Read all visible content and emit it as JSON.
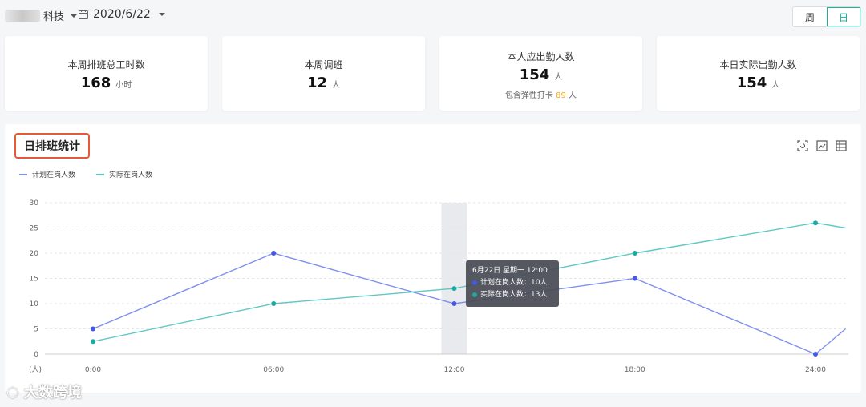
{
  "header": {
    "company_suffix": "科技",
    "date": "2020/6/22",
    "view_toggle": [
      "周",
      "日"
    ],
    "active_view": "日"
  },
  "cards": [
    {
      "label": "本周排班总工时数",
      "value": "168",
      "unit": "小时"
    },
    {
      "label": "本周调班",
      "value": "12",
      "unit": "人"
    },
    {
      "label": "本人应出勤人数",
      "value": "154",
      "unit": "人",
      "note_prefix": "包含弹性打卡",
      "note_value": "89",
      "note_unit": "人"
    },
    {
      "label": "本日实际出勤人数",
      "value": "154",
      "unit": "人"
    }
  ],
  "chart_panel": {
    "title": "日排班统计",
    "tools": [
      "restore-icon",
      "save-image-icon",
      "data-view-icon"
    ]
  },
  "chart_data": {
    "type": "line",
    "x": [
      "0:00",
      "06:00",
      "12:00",
      "18:00",
      "24:00"
    ],
    "x_hours": [
      0,
      6,
      12,
      18,
      24
    ],
    "ylim": [
      0,
      30
    ],
    "yticks": [
      0,
      5,
      10,
      15,
      20,
      25,
      30
    ],
    "y_unit_label": "(人)",
    "legend_position": "top-left",
    "grid": true,
    "series": [
      {
        "name": "计划在岗人数",
        "color": "#7f8ff0",
        "dot_color": "#4759e4",
        "points": [
          [
            0,
            5
          ],
          [
            6,
            20
          ],
          [
            12,
            10
          ],
          [
            18,
            15
          ],
          [
            24,
            0
          ],
          [
            25,
            5
          ]
        ]
      },
      {
        "name": "实际在岗人数",
        "color": "#5fc8c4",
        "dot_color": "#1ea9a3",
        "points": [
          [
            0,
            2.5
          ],
          [
            6,
            10
          ],
          [
            12,
            13
          ],
          [
            18,
            20
          ],
          [
            24,
            26
          ],
          [
            25,
            25
          ]
        ]
      }
    ],
    "tooltip": {
      "title": "6月22日 星期一 12:00",
      "rows": [
        {
          "label": "计划在岗人数：",
          "value": "10人"
        },
        {
          "label": "实际在岗人数：",
          "value": "13人"
        }
      ]
    }
  },
  "colors": {
    "accent": "#19b198",
    "highlight_border": "#e55a36",
    "plan": "#7f8ff0",
    "actual": "#5fc8c4"
  },
  "watermark": "大数跨境"
}
